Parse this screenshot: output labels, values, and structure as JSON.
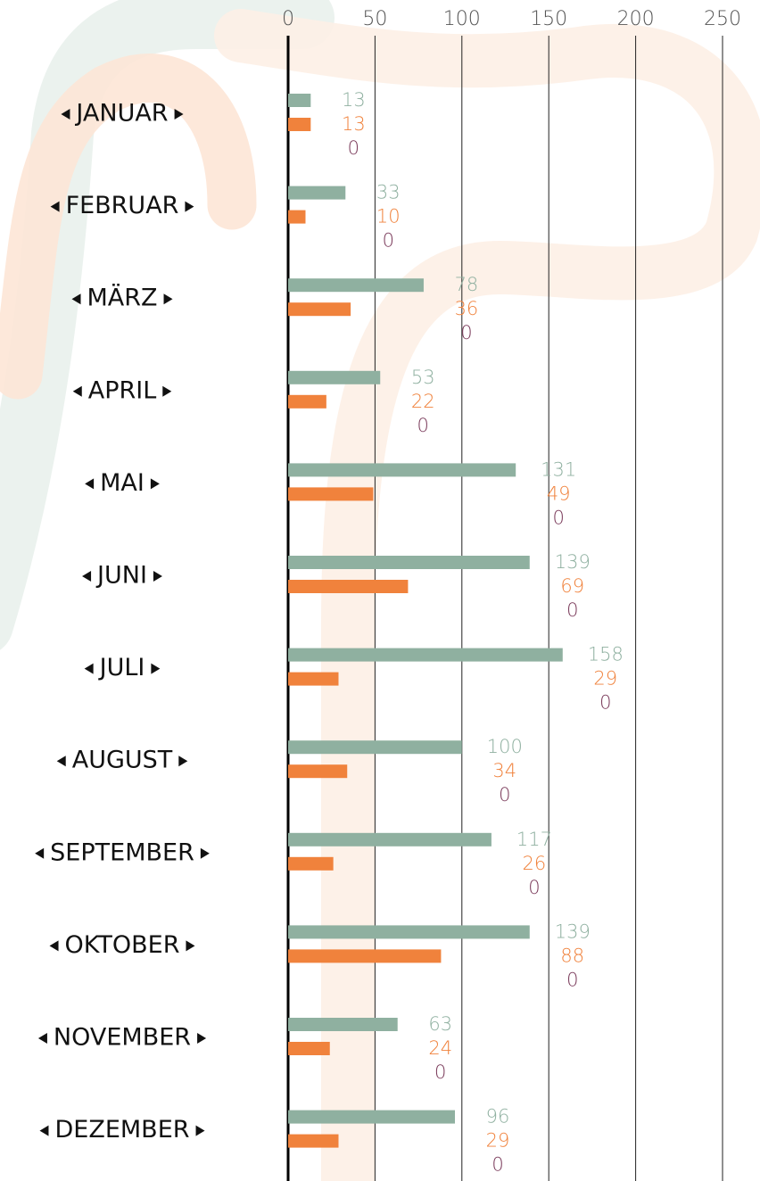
{
  "chart_data": {
    "type": "bar",
    "orientation": "horizontal",
    "categories": [
      "JANUAR",
      "FEBRUAR",
      "MÄRZ",
      "APRIL",
      "MAI",
      "JUNI",
      "JULI",
      "AUGUST",
      "SEPTEMBER",
      "OKTOBER",
      "NOVEMBER",
      "DEZEMBER"
    ],
    "series": [
      {
        "color": "#8fb0a0",
        "values": [
          13,
          33,
          78,
          53,
          131,
          139,
          158,
          100,
          117,
          139,
          63,
          96
        ]
      },
      {
        "color": "#f0823c",
        "values": [
          13,
          10,
          36,
          22,
          49,
          69,
          29,
          34,
          26,
          88,
          24,
          29
        ]
      },
      {
        "color": "#7a3a5a",
        "values": [
          0,
          0,
          0,
          0,
          0,
          0,
          0,
          0,
          0,
          0,
          0,
          0
        ]
      }
    ],
    "xlim": [
      0,
      250
    ],
    "xticks": [
      0,
      50,
      100,
      150,
      200,
      250
    ],
    "grid": true
  }
}
